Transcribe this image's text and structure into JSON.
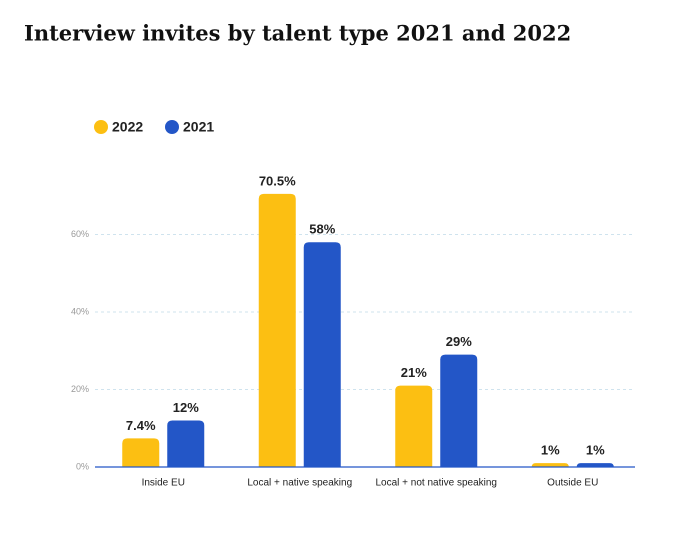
{
  "chart_data": {
    "type": "bar",
    "title": "Interview invites by talent type 2021 and 2022",
    "categories": [
      "Inside EU",
      "Local + native speaking",
      "Local + not native speaking",
      "Outside EU"
    ],
    "series": [
      {
        "name": "2022",
        "color": "#fcbf12",
        "values": [
          7.4,
          70.5,
          21,
          1
        ],
        "value_labels": [
          "7.4%",
          "70.5%",
          "21%",
          "1%"
        ]
      },
      {
        "name": "2021",
        "color": "#2356c7",
        "values": [
          12,
          58,
          29,
          1
        ],
        "value_labels": [
          "12%",
          "58%",
          "29%",
          "1%"
        ]
      }
    ],
    "ylim": [
      0,
      80
    ],
    "yticks": [
      {
        "value": 0,
        "label": "0%"
      },
      {
        "value": 20,
        "label": "20%"
      },
      {
        "value": 40,
        "label": "40%"
      },
      {
        "value": 60,
        "label": "60%"
      }
    ],
    "grid": true,
    "legend": "top-left"
  }
}
